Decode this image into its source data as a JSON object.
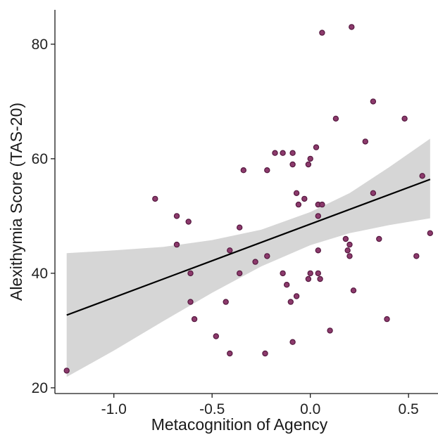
{
  "chart_data": {
    "type": "scatter",
    "xlabel": "Metacognition of Agency",
    "ylabel": "Alexithymia Score (TAS-20)",
    "xlim": [
      -1.3,
      0.65
    ],
    "ylim": [
      19,
      86
    ],
    "xticks": [
      -1.0,
      -0.5,
      0.0,
      0.5
    ],
    "xtick_labels": [
      "-1.0",
      "-0.5",
      "0.0",
      "0.5"
    ],
    "yticks": [
      20,
      40,
      60,
      80
    ],
    "ytick_labels": [
      "20",
      "40",
      "60",
      "80"
    ],
    "grid": false,
    "colors": {
      "point": "#8c3a6c",
      "band": "#d6d6d6",
      "line": "#000000"
    },
    "points": [
      {
        "x": -1.24,
        "y": 23
      },
      {
        "x": -0.79,
        "y": 53
      },
      {
        "x": -0.68,
        "y": 50
      },
      {
        "x": -0.68,
        "y": 45
      },
      {
        "x": -0.62,
        "y": 49
      },
      {
        "x": -0.61,
        "y": 40
      },
      {
        "x": -0.61,
        "y": 35
      },
      {
        "x": -0.59,
        "y": 32
      },
      {
        "x": -0.48,
        "y": 29
      },
      {
        "x": -0.43,
        "y": 35
      },
      {
        "x": -0.41,
        "y": 44
      },
      {
        "x": -0.41,
        "y": 26
      },
      {
        "x": -0.36,
        "y": 48
      },
      {
        "x": -0.36,
        "y": 40
      },
      {
        "x": -0.34,
        "y": 58
      },
      {
        "x": -0.28,
        "y": 42
      },
      {
        "x": -0.23,
        "y": 26
      },
      {
        "x": -0.22,
        "y": 58
      },
      {
        "x": -0.22,
        "y": 43
      },
      {
        "x": -0.18,
        "y": 61
      },
      {
        "x": -0.14,
        "y": 61
      },
      {
        "x": -0.14,
        "y": 40
      },
      {
        "x": -0.12,
        "y": 38
      },
      {
        "x": -0.1,
        "y": 35
      },
      {
        "x": -0.09,
        "y": 61
      },
      {
        "x": -0.09,
        "y": 59
      },
      {
        "x": -0.09,
        "y": 28
      },
      {
        "x": -0.07,
        "y": 54
      },
      {
        "x": -0.07,
        "y": 36
      },
      {
        "x": -0.06,
        "y": 52
      },
      {
        "x": -0.03,
        "y": 53
      },
      {
        "x": -0.01,
        "y": 59
      },
      {
        "x": -0.01,
        "y": 39
      },
      {
        "x": 0.0,
        "y": 60
      },
      {
        "x": 0.0,
        "y": 40
      },
      {
        "x": 0.03,
        "y": 62
      },
      {
        "x": 0.04,
        "y": 52
      },
      {
        "x": 0.04,
        "y": 50
      },
      {
        "x": 0.04,
        "y": 44
      },
      {
        "x": 0.04,
        "y": 40
      },
      {
        "x": 0.05,
        "y": 39
      },
      {
        "x": 0.06,
        "y": 82
      },
      {
        "x": 0.06,
        "y": 52
      },
      {
        "x": 0.1,
        "y": 30
      },
      {
        "x": 0.13,
        "y": 67
      },
      {
        "x": 0.18,
        "y": 46
      },
      {
        "x": 0.19,
        "y": 44
      },
      {
        "x": 0.2,
        "y": 45
      },
      {
        "x": 0.2,
        "y": 43
      },
      {
        "x": 0.21,
        "y": 83
      },
      {
        "x": 0.22,
        "y": 37
      },
      {
        "x": 0.28,
        "y": 63
      },
      {
        "x": 0.32,
        "y": 70
      },
      {
        "x": 0.32,
        "y": 54
      },
      {
        "x": 0.35,
        "y": 46
      },
      {
        "x": 0.39,
        "y": 32
      },
      {
        "x": 0.48,
        "y": 67
      },
      {
        "x": 0.54,
        "y": 43
      },
      {
        "x": 0.57,
        "y": 57
      },
      {
        "x": 0.61,
        "y": 47
      }
    ],
    "fit_line": {
      "x": [
        -1.24,
        0.61
      ],
      "y": [
        32.7,
        56.4
      ]
    },
    "confidence_band": {
      "x": [
        -1.24,
        -1.0,
        -0.75,
        -0.5,
        -0.25,
        0.0,
        0.2,
        0.4,
        0.61
      ],
      "upper": [
        43.5,
        44.0,
        44.6,
        45.8,
        47.6,
        50.7,
        54.0,
        58.5,
        63.5
      ],
      "lower": [
        21.9,
        26.5,
        31.6,
        36.6,
        41.2,
        44.9,
        47.0,
        48.4,
        49.6
      ]
    }
  }
}
